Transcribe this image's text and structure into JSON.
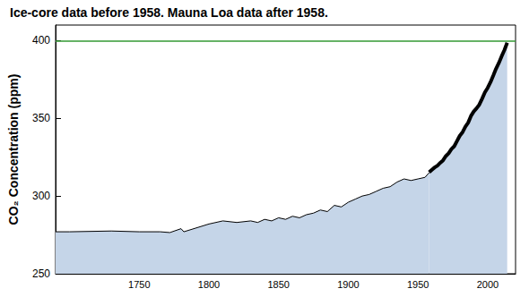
{
  "chart_data": {
    "type": "area",
    "title": "Ice-core data before 1958. Mauna Loa data after 1958.",
    "y_label": "CO₂ Concentration (ppm)",
    "xlim": [
      1690,
      2020
    ],
    "xticks": [
      1750,
      1800,
      1850,
      1900,
      1950,
      2000
    ],
    "ylim": [
      250,
      410
    ],
    "yticks": [
      250,
      300,
      350,
      400
    ],
    "grid": false,
    "reference_line": {
      "value": 400,
      "color": "#339933"
    },
    "series": [
      {
        "color": "#000000",
        "line_style": "thin",
        "x": [
          1690,
          1700,
          1730,
          1750,
          1765,
          1772,
          1780,
          1782,
          1800,
          1810,
          1820,
          1830,
          1835,
          1840,
          1845,
          1850,
          1855,
          1860,
          1865,
          1870,
          1875,
          1880,
          1885,
          1890,
          1895,
          1900,
          1905,
          1910,
          1915,
          1920,
          1925,
          1930,
          1935,
          1940,
          1945,
          1950,
          1955,
          1958
        ],
        "values": [
          277,
          277,
          277.5,
          277,
          277,
          276.5,
          279,
          277,
          282,
          284,
          283,
          284,
          283,
          285,
          284,
          286,
          285,
          287,
          286,
          288,
          289,
          291,
          290,
          294,
          293,
          296,
          298,
          300,
          301,
          303,
          305,
          306,
          309,
          311,
          310,
          311,
          312,
          315
        ]
      },
      {
        "color": "#000000",
        "line_style": "thick",
        "x": [
          1958,
          1960,
          1962,
          1964,
          1966,
          1968,
          1970,
          1972,
          1974,
          1976,
          1978,
          1980,
          1982,
          1984,
          1986,
          1988,
          1990,
          1992,
          1994,
          1996,
          1998,
          2000,
          2002,
          2004,
          2006,
          2008,
          2010,
          2012,
          2014
        ],
        "values": [
          315.3,
          316.9,
          318.4,
          319.6,
          321.4,
          323.0,
          325.7,
          327.5,
          330.2,
          332.0,
          335.4,
          338.8,
          341.1,
          344.6,
          347.2,
          351.5,
          354.4,
          356.4,
          358.8,
          362.6,
          366.7,
          369.6,
          373.2,
          377.5,
          381.9,
          385.6,
          389.9,
          393.9,
          398.6
        ]
      }
    ]
  }
}
